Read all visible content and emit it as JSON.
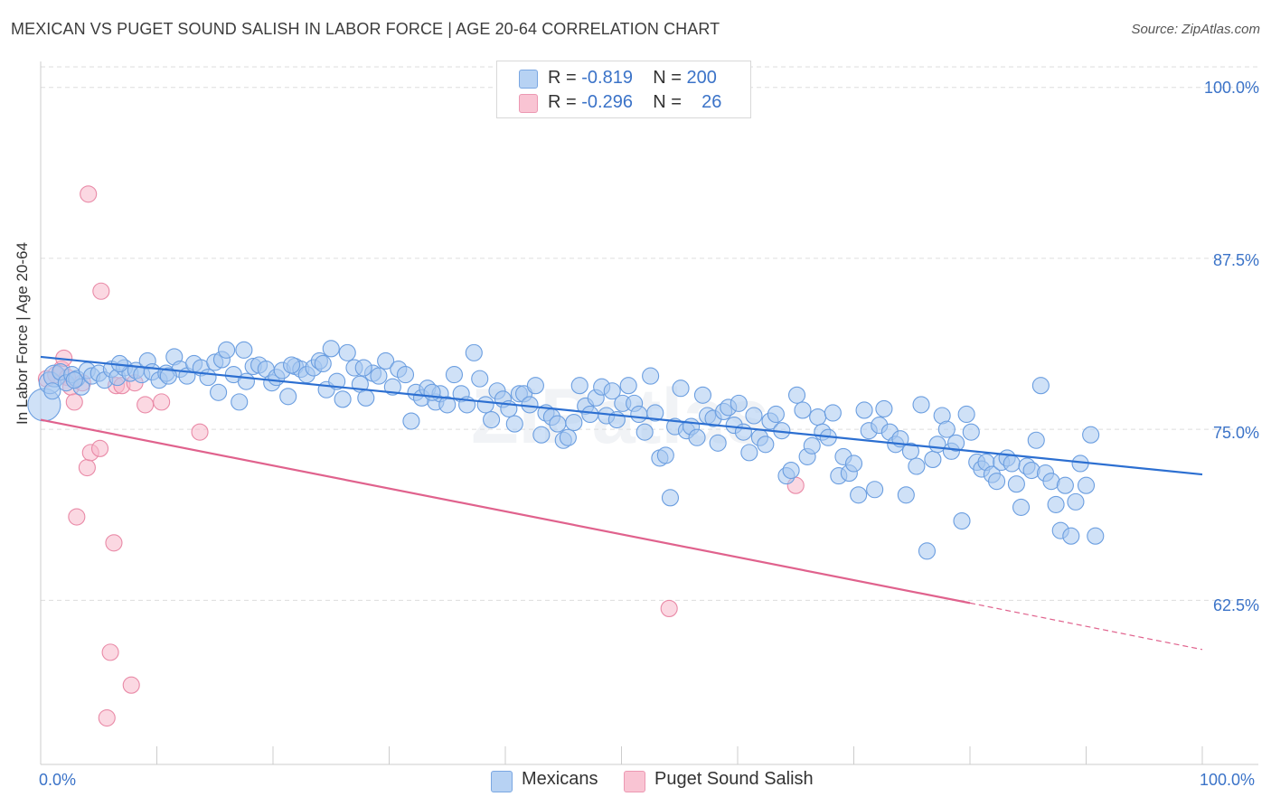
{
  "title": "MEXICAN VS PUGET SOUND SALISH IN LABOR FORCE | AGE 20-64 CORRELATION CHART",
  "source": "Source: ZipAtlas.com",
  "legend": {
    "rows": [
      {
        "r_label": "R = ",
        "r_value": "-0.819",
        "n_label": "N = ",
        "n_value": "200"
      },
      {
        "r_label": "R = ",
        "r_value": "-0.296",
        "n_label": "N = ",
        "n_value": "26"
      }
    ]
  },
  "watermark": "ZIPatlas",
  "colors": {
    "blue_fill": "#a8c8f0",
    "blue_stroke": "#6b9ee0",
    "blue_line": "#2c6fd1",
    "pink_fill": "#f7b8cb",
    "pink_stroke": "#e98aa7",
    "pink_line": "#e0628d",
    "grid": "#dddddd",
    "axis_text": "#3b73c8"
  },
  "chart_data": {
    "type": "scatter",
    "title": "MEXICAN VS PUGET SOUND SALISH IN LABOR FORCE | AGE 20-64 CORRELATION CHART",
    "xlabel": "",
    "ylabel": "In Labor Force | Age 20-64",
    "xlim": [
      0,
      100
    ],
    "ylim": [
      50.5,
      101.5
    ],
    "x_tick_labels": [
      "0.0%",
      "100.0%"
    ],
    "y_ticks": [
      62.5,
      75.0,
      87.5,
      100.0
    ],
    "y_tick_labels": [
      "62.5%",
      "75.0%",
      "87.5%",
      "100.0%"
    ],
    "grid": true,
    "legend_position": "top-center and bottom",
    "series": [
      {
        "name": "Mexicans",
        "r": -0.819,
        "n": 200,
        "trend": {
          "x": [
            0,
            100
          ],
          "y": [
            80.3,
            71.7
          ]
        },
        "points": [
          [
            0.3,
            76.8
          ],
          [
            0.8,
            78.4
          ],
          [
            1.2,
            78.9
          ],
          [
            1.7,
            79.2
          ],
          [
            2.2,
            78.4
          ],
          [
            2.7,
            79.0
          ],
          [
            3.1,
            78.7
          ],
          [
            3.5,
            78.1
          ],
          [
            4.0,
            79.3
          ],
          [
            4.4,
            78.9
          ],
          [
            5.0,
            79.1
          ],
          [
            5.5,
            78.6
          ],
          [
            6.1,
            79.4
          ],
          [
            6.6,
            78.8
          ],
          [
            7.2,
            79.5
          ],
          [
            7.7,
            79.1
          ],
          [
            8.2,
            79.3
          ],
          [
            8.7,
            79.0
          ],
          [
            9.2,
            80.0
          ],
          [
            9.6,
            79.2
          ],
          [
            10.2,
            78.6
          ],
          [
            10.8,
            79.1
          ],
          [
            11.5,
            80.3
          ],
          [
            12.0,
            79.4
          ],
          [
            12.6,
            78.9
          ],
          [
            13.2,
            79.8
          ],
          [
            13.8,
            79.5
          ],
          [
            14.4,
            78.8
          ],
          [
            15.0,
            79.9
          ],
          [
            15.3,
            77.7
          ],
          [
            15.6,
            80.1
          ],
          [
            16.0,
            80.8
          ],
          [
            16.6,
            79.0
          ],
          [
            17.1,
            77.0
          ],
          [
            17.7,
            78.5
          ],
          [
            18.3,
            79.6
          ],
          [
            18.8,
            79.7
          ],
          [
            19.4,
            79.4
          ],
          [
            19.9,
            78.4
          ],
          [
            20.3,
            78.8
          ],
          [
            20.8,
            79.3
          ],
          [
            21.3,
            77.4
          ],
          [
            21.9,
            79.6
          ],
          [
            22.4,
            79.4
          ],
          [
            22.9,
            79.0
          ],
          [
            23.5,
            79.5
          ],
          [
            24.0,
            80.0
          ],
          [
            24.6,
            77.9
          ],
          [
            25.0,
            80.9
          ],
          [
            25.5,
            78.5
          ],
          [
            26.0,
            77.2
          ],
          [
            26.4,
            80.6
          ],
          [
            27.0,
            79.5
          ],
          [
            27.5,
            78.3
          ],
          [
            28.0,
            77.3
          ],
          [
            28.6,
            79.1
          ],
          [
            29.1,
            78.9
          ],
          [
            29.7,
            80.0
          ],
          [
            30.3,
            78.1
          ],
          [
            30.8,
            79.4
          ],
          [
            31.4,
            79.0
          ],
          [
            31.9,
            75.6
          ],
          [
            32.3,
            77.7
          ],
          [
            32.8,
            77.3
          ],
          [
            33.3,
            78.0
          ],
          [
            34.0,
            77.0
          ],
          [
            34.4,
            77.6
          ],
          [
            35.0,
            76.8
          ],
          [
            35.6,
            79.0
          ],
          [
            36.2,
            77.6
          ],
          [
            36.7,
            76.8
          ],
          [
            37.3,
            80.6
          ],
          [
            37.8,
            78.7
          ],
          [
            38.3,
            76.8
          ],
          [
            38.8,
            75.7
          ],
          [
            39.3,
            77.8
          ],
          [
            39.8,
            77.2
          ],
          [
            40.3,
            76.5
          ],
          [
            40.8,
            75.4
          ],
          [
            41.2,
            77.6
          ],
          [
            41.6,
            77.6
          ],
          [
            42.1,
            76.8
          ],
          [
            42.6,
            78.2
          ],
          [
            43.1,
            74.6
          ],
          [
            43.5,
            76.2
          ],
          [
            44.0,
            75.9
          ],
          [
            44.5,
            75.4
          ],
          [
            45.0,
            74.2
          ],
          [
            45.4,
            74.4
          ],
          [
            45.9,
            75.5
          ],
          [
            46.4,
            78.2
          ],
          [
            46.9,
            76.7
          ],
          [
            47.3,
            76.1
          ],
          [
            47.8,
            77.3
          ],
          [
            48.3,
            78.1
          ],
          [
            48.7,
            76.0
          ],
          [
            49.2,
            77.8
          ],
          [
            49.6,
            75.7
          ],
          [
            50.1,
            76.9
          ],
          [
            50.6,
            78.2
          ],
          [
            51.1,
            76.9
          ],
          [
            51.5,
            76.1
          ],
          [
            52.0,
            74.8
          ],
          [
            52.5,
            78.9
          ],
          [
            52.9,
            76.2
          ],
          [
            53.3,
            72.9
          ],
          [
            53.8,
            73.1
          ],
          [
            54.2,
            70.0
          ],
          [
            54.6,
            75.2
          ],
          [
            55.1,
            78.0
          ],
          [
            55.6,
            74.9
          ],
          [
            56.0,
            75.2
          ],
          [
            56.5,
            74.4
          ],
          [
            57.0,
            77.5
          ],
          [
            57.4,
            76.0
          ],
          [
            57.9,
            75.8
          ],
          [
            58.3,
            74.0
          ],
          [
            58.8,
            76.3
          ],
          [
            59.2,
            76.6
          ],
          [
            59.7,
            75.3
          ],
          [
            60.1,
            76.9
          ],
          [
            60.5,
            74.8
          ],
          [
            61.0,
            73.3
          ],
          [
            61.4,
            76.0
          ],
          [
            61.9,
            74.4
          ],
          [
            62.4,
            73.9
          ],
          [
            62.8,
            75.6
          ],
          [
            63.3,
            76.1
          ],
          [
            63.8,
            74.9
          ],
          [
            64.2,
            71.6
          ],
          [
            64.6,
            72.0
          ],
          [
            65.1,
            77.5
          ],
          [
            65.6,
            76.4
          ],
          [
            66.0,
            73.0
          ],
          [
            66.4,
            73.8
          ],
          [
            66.9,
            75.9
          ],
          [
            67.3,
            74.8
          ],
          [
            67.8,
            74.4
          ],
          [
            68.2,
            76.2
          ],
          [
            68.7,
            71.6
          ],
          [
            69.1,
            73.0
          ],
          [
            69.6,
            71.8
          ],
          [
            70.0,
            72.5
          ],
          [
            70.4,
            70.2
          ],
          [
            70.9,
            76.4
          ],
          [
            71.3,
            74.9
          ],
          [
            71.8,
            70.6
          ],
          [
            72.2,
            75.3
          ],
          [
            72.6,
            76.5
          ],
          [
            73.1,
            74.8
          ],
          [
            73.6,
            73.9
          ],
          [
            74.0,
            74.3
          ],
          [
            74.5,
            70.2
          ],
          [
            74.9,
            73.4
          ],
          [
            75.4,
            72.3
          ],
          [
            75.8,
            76.8
          ],
          [
            76.3,
            66.1
          ],
          [
            76.8,
            72.8
          ],
          [
            77.2,
            73.9
          ],
          [
            77.6,
            76.0
          ],
          [
            78.0,
            75.0
          ],
          [
            78.4,
            73.4
          ],
          [
            78.8,
            74.0
          ],
          [
            79.3,
            68.3
          ],
          [
            79.7,
            76.1
          ],
          [
            80.1,
            74.8
          ],
          [
            80.6,
            72.6
          ],
          [
            81.0,
            72.1
          ],
          [
            81.4,
            72.6
          ],
          [
            81.9,
            71.7
          ],
          [
            82.3,
            71.2
          ],
          [
            82.7,
            72.6
          ],
          [
            83.2,
            72.9
          ],
          [
            83.6,
            72.5
          ],
          [
            84.0,
            71.0
          ],
          [
            84.4,
            69.3
          ],
          [
            84.9,
            72.3
          ],
          [
            85.3,
            72.0
          ],
          [
            85.7,
            74.2
          ],
          [
            86.1,
            78.2
          ],
          [
            86.5,
            71.8
          ],
          [
            87.0,
            71.2
          ],
          [
            87.4,
            69.5
          ],
          [
            87.8,
            67.6
          ],
          [
            88.2,
            70.9
          ],
          [
            88.7,
            67.2
          ],
          [
            89.1,
            69.7
          ],
          [
            89.5,
            72.5
          ],
          [
            90.0,
            70.9
          ],
          [
            90.4,
            74.6
          ],
          [
            90.8,
            67.2
          ],
          [
            1.0,
            77.8
          ],
          [
            2.9,
            78.6
          ],
          [
            6.8,
            79.8
          ],
          [
            11.0,
            78.9
          ],
          [
            17.5,
            80.8
          ],
          [
            21.6,
            79.7
          ],
          [
            24.3,
            79.8
          ],
          [
            27.8,
            79.5
          ],
          [
            33.7,
            77.7
          ]
        ]
      },
      {
        "name": "Puget Sound Salish",
        "r": -0.296,
        "n": 26,
        "trend": {
          "x": [
            0,
            80
          ],
          "y": [
            75.7,
            62.3
          ]
        },
        "trend_dashed": {
          "x": [
            80,
            100
          ],
          "y": [
            62.3,
            58.9
          ]
        },
        "points": [
          [
            0.5,
            78.7
          ],
          [
            1.3,
            79.0
          ],
          [
            1.8,
            79.4
          ],
          [
            2.3,
            78.8
          ],
          [
            2.0,
            80.2
          ],
          [
            2.6,
            78.1
          ],
          [
            2.9,
            77.0
          ],
          [
            3.6,
            78.4
          ],
          [
            4.0,
            72.2
          ],
          [
            4.1,
            92.2
          ],
          [
            4.3,
            73.3
          ],
          [
            5.1,
            73.6
          ],
          [
            5.2,
            85.1
          ],
          [
            3.1,
            68.6
          ],
          [
            6.5,
            78.2
          ],
          [
            7.0,
            78.2
          ],
          [
            8.1,
            78.4
          ],
          [
            9.0,
            76.8
          ],
          [
            10.4,
            77.0
          ],
          [
            13.7,
            74.8
          ],
          [
            6.3,
            66.7
          ],
          [
            6.0,
            58.7
          ],
          [
            7.8,
            56.3
          ],
          [
            5.7,
            53.9
          ],
          [
            54.1,
            61.9
          ],
          [
            65.0,
            70.9
          ]
        ]
      }
    ]
  }
}
